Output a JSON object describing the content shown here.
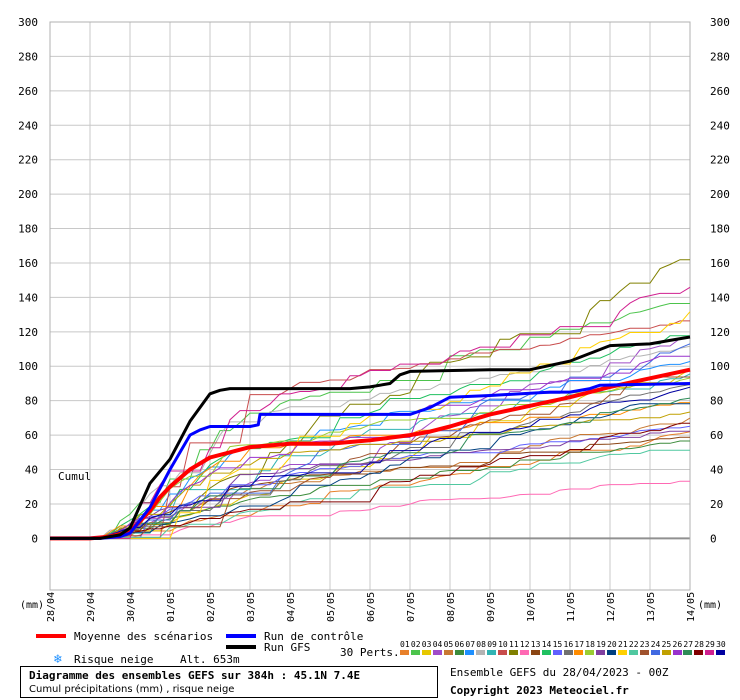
{
  "chart_data": {
    "type": "line",
    "title": "Diagramme des ensembles GEFS sur 384h : 45.1N 7.4E",
    "subtitle": "Cumul précipitations (mm) , risque neige",
    "ylabel": "(mm)",
    "y_series_label": "Cumul",
    "ylim": [
      -30,
      300
    ],
    "yticks": [
      0,
      20,
      40,
      60,
      80,
      100,
      120,
      140,
      160,
      180,
      200,
      220,
      240,
      260,
      280,
      300
    ],
    "x_range_hours": [
      0,
      384
    ],
    "xtick_labels": [
      "28/04",
      "29/04",
      "30/04",
      "01/05",
      "02/05",
      "03/05",
      "04/05",
      "05/05",
      "06/05",
      "07/05",
      "08/05",
      "09/05",
      "10/05",
      "11/05",
      "12/05",
      "13/05",
      "14/05"
    ],
    "grid": true,
    "series": [
      {
        "name": "Moyenne des scénarios",
        "color": "#ff0000",
        "width": 4,
        "x": [
          0,
          24,
          36,
          48,
          60,
          66,
          72,
          84,
          96,
          108,
          120,
          144,
          168,
          192,
          216,
          228,
          240,
          264,
          288,
          312,
          336,
          360,
          384
        ],
        "y": [
          0,
          0,
          1,
          4,
          16,
          24,
          30,
          40,
          47,
          50,
          53,
          55,
          55,
          57,
          60,
          62,
          65,
          72,
          77,
          82,
          88,
          93,
          98
        ]
      },
      {
        "name": "Run de contrôle",
        "color": "#0000ff",
        "width": 3,
        "x": [
          0,
          30,
          42,
          48,
          60,
          72,
          84,
          90,
          96,
          108,
          120,
          125,
          126,
          168,
          216,
          222,
          228,
          240,
          264,
          300,
          312,
          324,
          330,
          384
        ],
        "y": [
          0,
          0,
          1,
          3,
          18,
          40,
          60,
          63,
          65,
          65,
          65,
          66,
          72,
          72,
          72,
          74,
          76,
          82,
          83,
          85,
          85,
          87,
          89,
          90
        ]
      },
      {
        "name": "Run GFS",
        "color": "#000000",
        "width": 3,
        "x": [
          0,
          30,
          42,
          48,
          60,
          72,
          84,
          96,
          102,
          108,
          120,
          144,
          168,
          180,
          192,
          204,
          210,
          216,
          264,
          288,
          312,
          336,
          360,
          372,
          384
        ],
        "y": [
          0,
          0,
          2,
          6,
          32,
          46,
          68,
          84,
          86,
          87,
          87,
          87,
          87,
          87,
          88,
          90,
          95,
          97,
          98,
          98,
          103,
          112,
          113,
          115,
          117
        ]
      }
    ],
    "perturbations": {
      "label": "30 Perts.",
      "numbers": [
        "01",
        "02",
        "03",
        "04",
        "05",
        "06",
        "07",
        "08",
        "09",
        "10",
        "11",
        "12",
        "13",
        "14",
        "15",
        "16",
        "17",
        "18",
        "19",
        "20",
        "21",
        "22",
        "23",
        "24",
        "25",
        "26",
        "27",
        "28",
        "29",
        "30"
      ],
      "colors": [
        "#e8802a",
        "#4cc44c",
        "#e6c800",
        "#a04cc8",
        "#c87832",
        "#3c8c3c",
        "#1e90ff",
        "#b4b4b4",
        "#32b4b4",
        "#c84c4c",
        "#808000",
        "#ff69b4",
        "#8b4513",
        "#20c060",
        "#6060ff",
        "#707070",
        "#ff8c00",
        "#9acd32",
        "#8040a0",
        "#004080",
        "#ffd000",
        "#50c8a0",
        "#a0522d",
        "#4169e1",
        "#c0a000",
        "#9932cc",
        "#2e8b57",
        "#800000",
        "#d02090",
        "#0000a0"
      ]
    },
    "legend": {
      "mean_label": "Moyenne des scénarios",
      "control_label": "Run de contrôle",
      "gfs_label": "Run GFS",
      "snow_label": "Risque neige",
      "alt_label": "Alt. 653m",
      "snow_color": "#1e90ff"
    },
    "footer": {
      "ensemble_label": "Ensemble GEFS du 28/04/2023 - 00Z",
      "copyright": "Copyright 2023 Meteociel.fr"
    }
  }
}
